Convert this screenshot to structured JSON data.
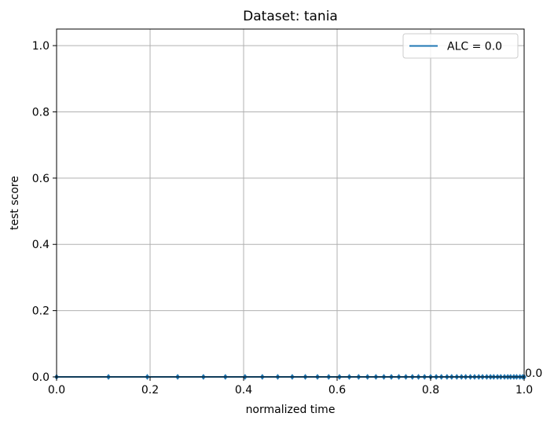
{
  "chart_data": {
    "type": "line",
    "title": "Dataset: tania",
    "xlabel": "normalized time",
    "ylabel": "test score",
    "xlim": [
      0.0,
      1.0
    ],
    "ylim": [
      0.0,
      1.05
    ],
    "xticks": [
      0.0,
      0.2,
      0.4,
      0.6,
      0.8,
      1.0
    ],
    "xtick_labels": [
      "0.0",
      "0.2",
      "0.4",
      "0.6",
      "0.8",
      "1.0"
    ],
    "yticks": [
      0.0,
      0.2,
      0.4,
      0.6,
      0.8,
      1.0
    ],
    "ytick_labels": [
      "0.0",
      "0.2",
      "0.4",
      "0.6",
      "0.8",
      "1.0"
    ],
    "grid": true,
    "legend_position": "upper right",
    "series": [
      {
        "name": "ALC = 0.0",
        "color": "#1f77b4",
        "marker": "diamond",
        "x": [
          0.0,
          0.111,
          0.194,
          0.259,
          0.314,
          0.361,
          0.403,
          0.44,
          0.473,
          0.504,
          0.532,
          0.558,
          0.582,
          0.605,
          0.626,
          0.646,
          0.665,
          0.683,
          0.7,
          0.716,
          0.732,
          0.747,
          0.761,
          0.774,
          0.787,
          0.8,
          0.812,
          0.823,
          0.835,
          0.845,
          0.856,
          0.866,
          0.875,
          0.885,
          0.894,
          0.903,
          0.911,
          0.92,
          0.928,
          0.935,
          0.943,
          0.95,
          0.958,
          0.965,
          0.971,
          0.978,
          0.984,
          0.991,
          0.997,
          1.0
        ],
        "y": [
          0.0,
          0.0,
          0.0,
          0.0,
          0.0,
          0.0,
          0.0,
          0.0,
          0.0,
          0.0,
          0.0,
          0.0,
          0.0,
          0.0,
          0.0,
          0.0,
          0.0,
          0.0,
          0.0,
          0.0,
          0.0,
          0.0,
          0.0,
          0.0,
          0.0,
          0.0,
          0.0,
          0.0,
          0.0,
          0.0,
          0.0,
          0.0,
          0.0,
          0.0,
          0.0,
          0.0,
          0.0,
          0.0,
          0.0,
          0.0,
          0.0,
          0.0,
          0.0,
          0.0,
          0.0,
          0.0,
          0.0,
          0.0,
          0.0,
          0.0
        ]
      }
    ],
    "annotations": [
      {
        "text": "0.0",
        "x": 1.0,
        "y": 0.0
      }
    ]
  }
}
